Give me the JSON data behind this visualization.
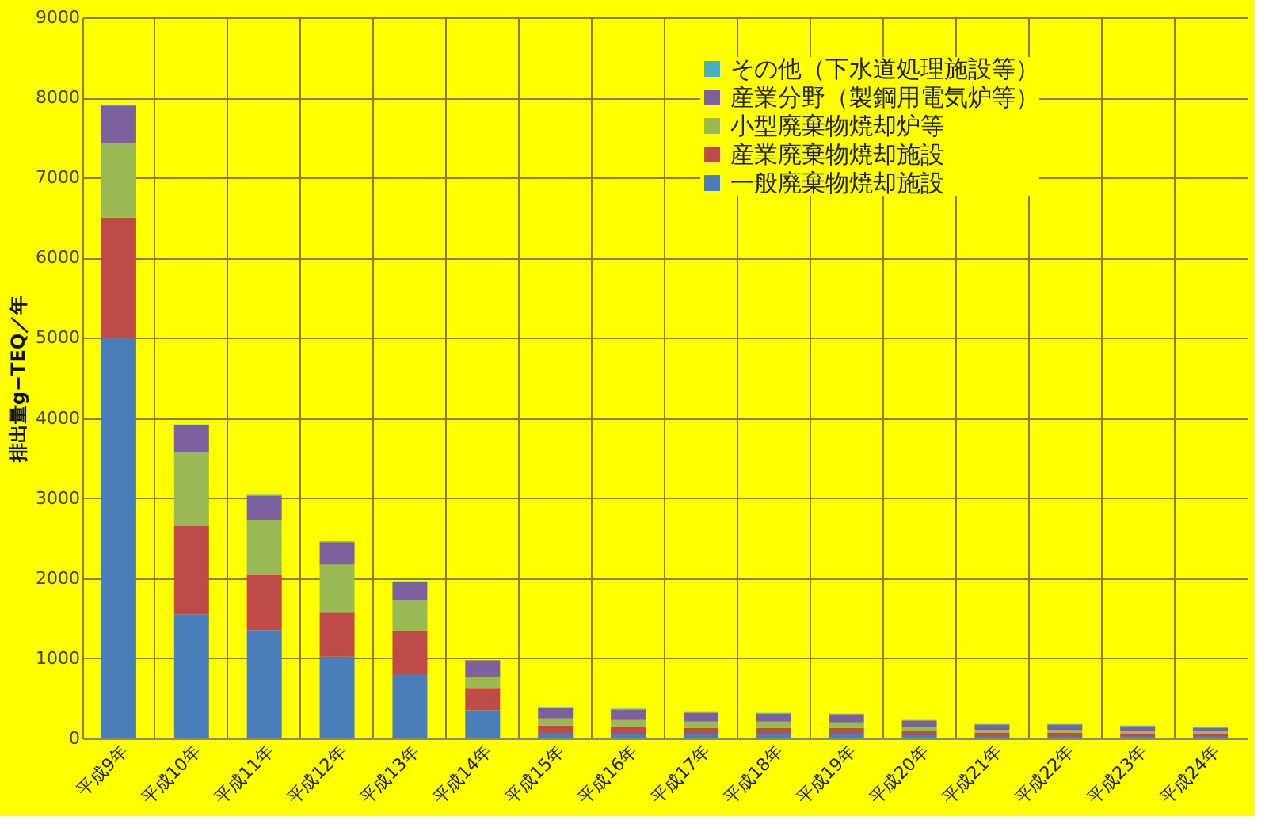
{
  "chart_data": {
    "type": "bar",
    "stacked": true,
    "ylabel": "排出量g−TEQ／年",
    "categories": [
      "平成9年",
      "平成10年",
      "平成11年",
      "平成12年",
      "平成13年",
      "平成14年",
      "平成15年",
      "平成16年",
      "平成17年",
      "平成18年",
      "平成19年",
      "平成20年",
      "平成21年",
      "平成22年",
      "平成23年",
      "平成24年"
    ],
    "series": [
      {
        "name": "一般廃棄物焼却施設",
        "color": "#4a7ebb",
        "values": [
          5000,
          1550,
          1350,
          1020,
          800,
          350,
          70,
          60,
          60,
          60,
          60,
          40,
          30,
          30,
          30,
          30
        ]
      },
      {
        "name": "産業廃棄物焼却施設",
        "color": "#be4b48",
        "values": [
          1500,
          1100,
          690,
          550,
          540,
          280,
          90,
          80,
          70,
          70,
          70,
          50,
          40,
          40,
          30,
          30
        ]
      },
      {
        "name": "小型廃棄物焼却炉等",
        "color": "#98b954",
        "values": [
          930,
          920,
          690,
          600,
          390,
          140,
          90,
          90,
          80,
          80,
          70,
          50,
          40,
          40,
          30,
          30
        ]
      },
      {
        "name": "産業分野（製鋼用電気炉等）",
        "color": "#7d60a0",
        "values": [
          470,
          340,
          300,
          280,
          220,
          200,
          130,
          130,
          110,
          100,
          100,
          80,
          60,
          60,
          60,
          40
        ]
      },
      {
        "name": "その他（下水道処理施設等）",
        "color": "#4bacc6",
        "values": [
          10,
          10,
          10,
          10,
          10,
          10,
          10,
          10,
          10,
          10,
          10,
          10,
          10,
          10,
          10,
          10
        ]
      }
    ],
    "ylim": [
      0,
      9000
    ],
    "yticks": [
      0,
      1000,
      2000,
      3000,
      4000,
      5000,
      6000,
      7000,
      8000,
      9000
    ],
    "grid": true,
    "legend": "top right"
  }
}
